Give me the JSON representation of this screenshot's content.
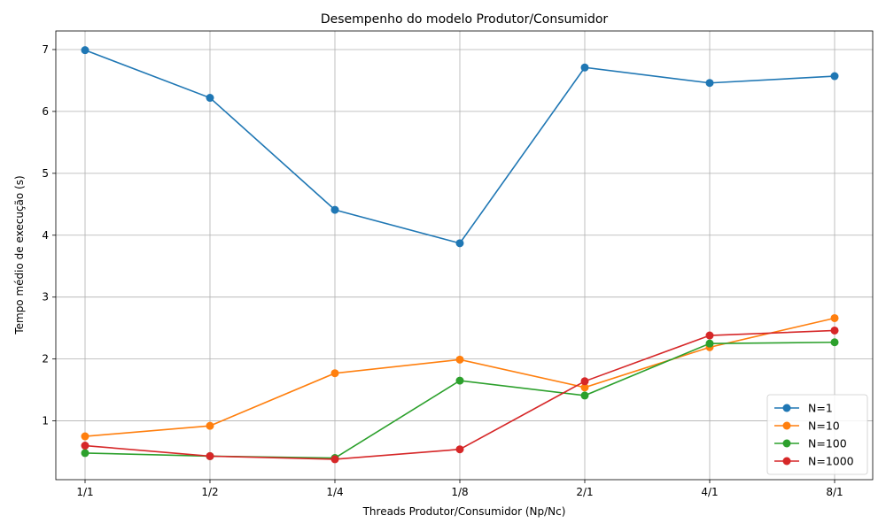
{
  "chart_data": {
    "type": "line",
    "title": "Desempenho do modelo Produtor/Consumidor",
    "xlabel": "Threads Produtor/Consumidor (Np/Nc)",
    "ylabel": "Tempo médio de execução (s)",
    "categories": [
      "1/1",
      "1/2",
      "1/4",
      "1/8",
      "2/1",
      "4/1",
      "8/1"
    ],
    "ylim": [
      0.05,
      7.3
    ],
    "yticks": [
      1,
      2,
      3,
      4,
      5,
      6,
      7
    ],
    "grid": true,
    "legend_position": "bottom-right",
    "marker": "circle",
    "series": [
      {
        "name": "N=1",
        "color": "#1f77b4",
        "values": [
          6.99,
          6.22,
          4.41,
          3.87,
          6.71,
          6.46,
          6.57
        ]
      },
      {
        "name": "N=10",
        "color": "#ff7f0e",
        "values": [
          0.75,
          0.92,
          1.77,
          1.99,
          1.54,
          2.19,
          2.66
        ]
      },
      {
        "name": "N=100",
        "color": "#2ca02c",
        "values": [
          0.48,
          0.43,
          0.4,
          1.65,
          1.41,
          2.25,
          2.27
        ]
      },
      {
        "name": "N=1000",
        "color": "#d62728",
        "values": [
          0.6,
          0.43,
          0.38,
          0.54,
          1.64,
          2.38,
          2.46
        ]
      }
    ]
  }
}
